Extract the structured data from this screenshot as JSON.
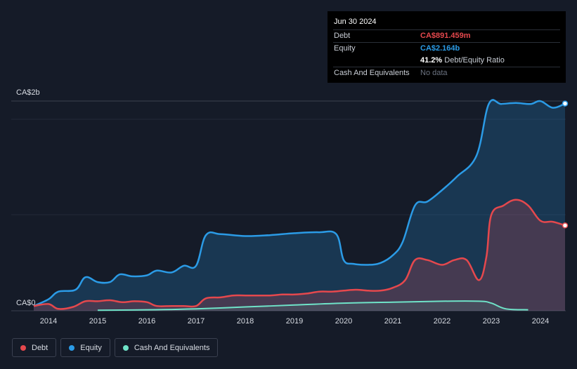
{
  "tooltip": {
    "date": "Jun 30 2024",
    "debt_label": "Debt",
    "debt_value": "CA$891.459m",
    "equity_label": "Equity",
    "equity_value": "CA$2.164b",
    "ratio_value": "41.2%",
    "ratio_label": "Debt/Equity Ratio",
    "cash_label": "Cash And Equivalents",
    "cash_value": "No data"
  },
  "legend": [
    {
      "name": "Debt",
      "color": "#e5484d"
    },
    {
      "name": "Equity",
      "color": "#2b9be6"
    },
    {
      "name": "Cash And Equivalents",
      "color": "#6fe3c8"
    }
  ],
  "chart_data": {
    "type": "area",
    "y_top_label": "CA$2b",
    "y_bottom_label": "CA$0",
    "ylim": [
      0,
      2.2
    ],
    "xlim": [
      2013.7,
      2024.5
    ],
    "x_ticks": [
      "2014",
      "2015",
      "2016",
      "2017",
      "2018",
      "2019",
      "2020",
      "2021",
      "2022",
      "2023",
      "2024"
    ],
    "series": [
      {
        "name": "Equity",
        "color": "#2b9be6",
        "points": [
          [
            2013.7,
            0.05
          ],
          [
            2014.0,
            0.12
          ],
          [
            2014.2,
            0.2
          ],
          [
            2014.55,
            0.22
          ],
          [
            2014.75,
            0.35
          ],
          [
            2015.0,
            0.3
          ],
          [
            2015.25,
            0.3
          ],
          [
            2015.45,
            0.38
          ],
          [
            2015.7,
            0.36
          ],
          [
            2016.0,
            0.37
          ],
          [
            2016.2,
            0.42
          ],
          [
            2016.5,
            0.4
          ],
          [
            2016.75,
            0.47
          ],
          [
            2017.0,
            0.47
          ],
          [
            2017.2,
            0.79
          ],
          [
            2017.5,
            0.8
          ],
          [
            2018.0,
            0.78
          ],
          [
            2018.5,
            0.79
          ],
          [
            2019.0,
            0.81
          ],
          [
            2019.5,
            0.82
          ],
          [
            2019.85,
            0.8
          ],
          [
            2020.0,
            0.53
          ],
          [
            2020.2,
            0.49
          ],
          [
            2020.5,
            0.48
          ],
          [
            2020.75,
            0.5
          ],
          [
            2021.0,
            0.58
          ],
          [
            2021.2,
            0.72
          ],
          [
            2021.45,
            1.1
          ],
          [
            2021.7,
            1.14
          ],
          [
            2022.0,
            1.26
          ],
          [
            2022.3,
            1.4
          ],
          [
            2022.7,
            1.62
          ],
          [
            2022.95,
            2.16
          ],
          [
            2023.2,
            2.16
          ],
          [
            2023.5,
            2.17
          ],
          [
            2023.8,
            2.16
          ],
          [
            2024.0,
            2.19
          ],
          [
            2024.25,
            2.12
          ],
          [
            2024.5,
            2.164
          ]
        ]
      },
      {
        "name": "Debt",
        "color": "#e5484d",
        "points": [
          [
            2013.7,
            0.05
          ],
          [
            2014.0,
            0.07
          ],
          [
            2014.2,
            0.02
          ],
          [
            2014.5,
            0.04
          ],
          [
            2014.75,
            0.1
          ],
          [
            2015.0,
            0.1
          ],
          [
            2015.25,
            0.11
          ],
          [
            2015.5,
            0.09
          ],
          [
            2015.75,
            0.1
          ],
          [
            2016.0,
            0.09
          ],
          [
            2016.2,
            0.05
          ],
          [
            2016.5,
            0.05
          ],
          [
            2016.75,
            0.05
          ],
          [
            2017.0,
            0.05
          ],
          [
            2017.2,
            0.13
          ],
          [
            2017.5,
            0.14
          ],
          [
            2017.75,
            0.16
          ],
          [
            2018.0,
            0.16
          ],
          [
            2018.5,
            0.16
          ],
          [
            2018.75,
            0.17
          ],
          [
            2019.0,
            0.17
          ],
          [
            2019.25,
            0.18
          ],
          [
            2019.5,
            0.2
          ],
          [
            2019.75,
            0.2
          ],
          [
            2020.0,
            0.21
          ],
          [
            2020.25,
            0.22
          ],
          [
            2020.5,
            0.21
          ],
          [
            2020.75,
            0.21
          ],
          [
            2021.0,
            0.24
          ],
          [
            2021.25,
            0.32
          ],
          [
            2021.45,
            0.53
          ],
          [
            2021.7,
            0.53
          ],
          [
            2022.0,
            0.48
          ],
          [
            2022.25,
            0.53
          ],
          [
            2022.5,
            0.53
          ],
          [
            2022.75,
            0.32
          ],
          [
            2022.9,
            0.56
          ],
          [
            2023.0,
            1.0
          ],
          [
            2023.25,
            1.1
          ],
          [
            2023.5,
            1.16
          ],
          [
            2023.75,
            1.1
          ],
          [
            2024.0,
            0.94
          ],
          [
            2024.25,
            0.93
          ],
          [
            2024.5,
            0.891
          ]
        ]
      },
      {
        "name": "Cash And Equivalents",
        "color": "#6fe3c8",
        "points": [
          [
            2015.0,
            0.005
          ],
          [
            2016.0,
            0.01
          ],
          [
            2017.0,
            0.02
          ],
          [
            2018.0,
            0.04
          ],
          [
            2019.0,
            0.06
          ],
          [
            2020.0,
            0.08
          ],
          [
            2021.0,
            0.09
          ],
          [
            2022.0,
            0.1
          ],
          [
            2022.75,
            0.1
          ],
          [
            2023.0,
            0.08
          ],
          [
            2023.3,
            0.02
          ],
          [
            2023.75,
            0.01
          ]
        ]
      }
    ]
  }
}
